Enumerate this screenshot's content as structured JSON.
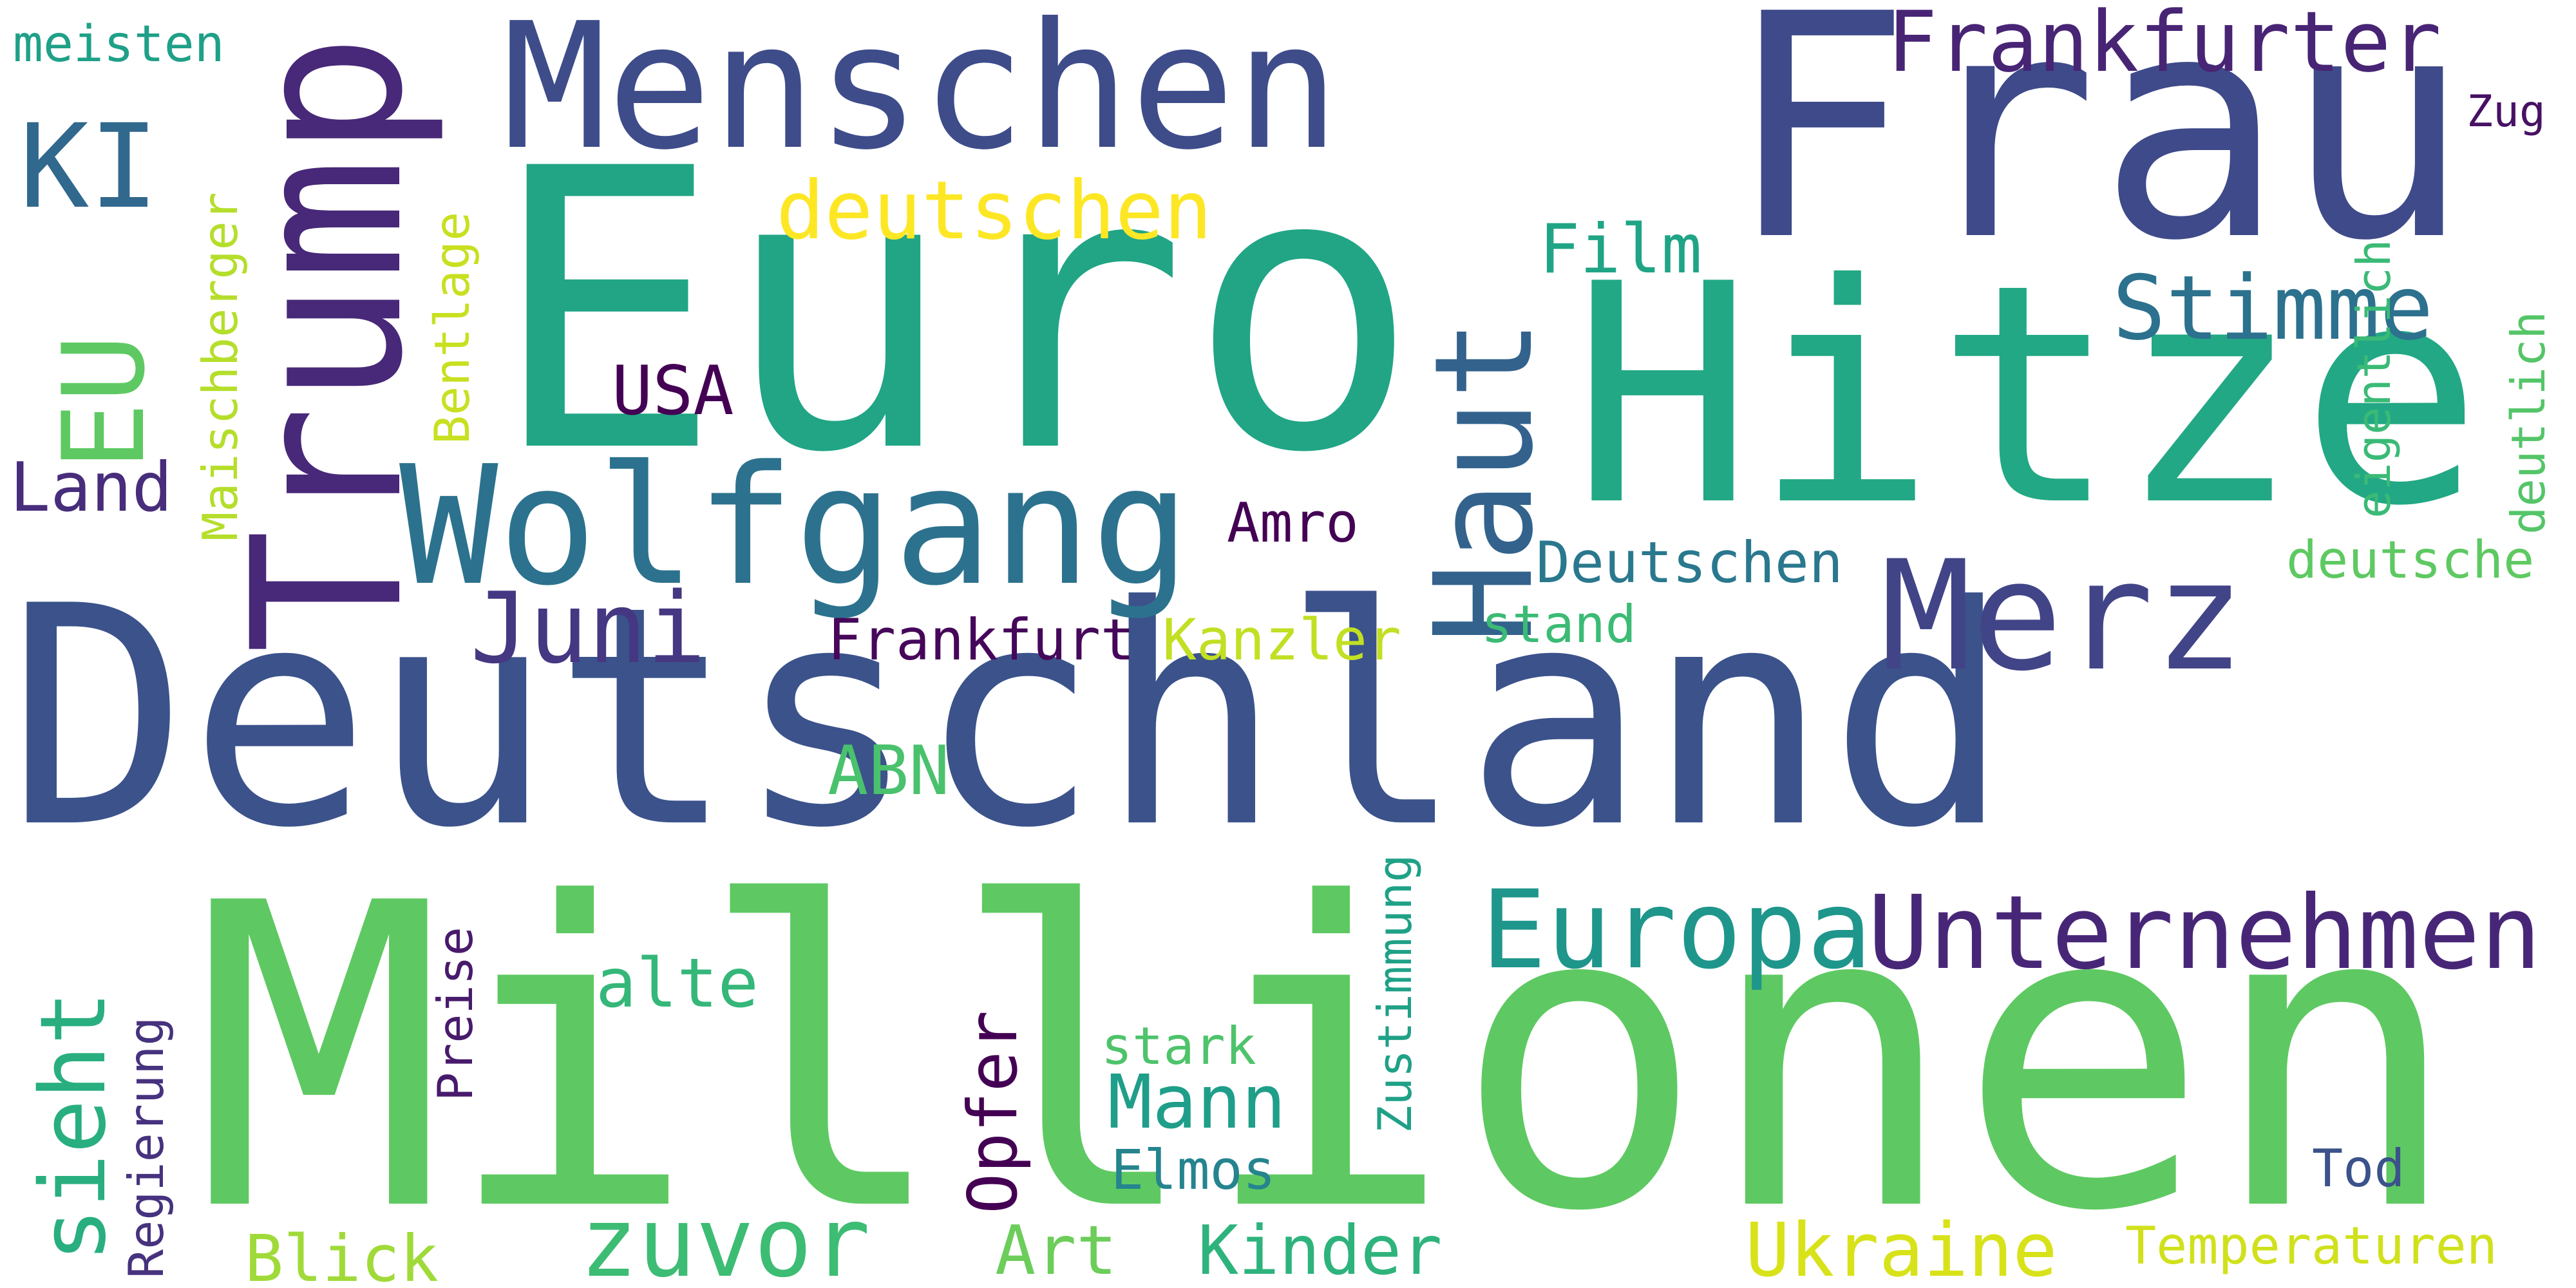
{
  "words": [
    {
      "text": "Deutschland",
      "color": "#3b528b",
      "orientation": "horizontal"
    },
    {
      "text": "Millionen",
      "color": "#5ec962",
      "orientation": "horizontal"
    },
    {
      "text": "Euro",
      "color": "#21a585",
      "orientation": "horizontal"
    },
    {
      "text": "Hitze",
      "color": "#22a884",
      "orientation": "horizontal"
    },
    {
      "text": "Frau",
      "color": "#3e4a89",
      "orientation": "horizontal"
    },
    {
      "text": "Trump",
      "color": "#482878",
      "orientation": "vertical"
    },
    {
      "text": "Menschen",
      "color": "#3e4c8a",
      "orientation": "horizontal"
    },
    {
      "text": "Wolfgang",
      "color": "#2c728e",
      "orientation": "horizontal"
    },
    {
      "text": "Merz",
      "color": "#414487",
      "orientation": "horizontal"
    },
    {
      "text": "Haut",
      "color": "#33638d",
      "orientation": "vertical"
    },
    {
      "text": "Unternehmen",
      "color": "#482677",
      "orientation": "horizontal"
    },
    {
      "text": "Europa",
      "color": "#1f968b",
      "orientation": "horizontal"
    },
    {
      "text": "EU",
      "color": "#5ec962",
      "orientation": "vertical"
    },
    {
      "text": "KI",
      "color": "#31688e",
      "orientation": "horizontal"
    },
    {
      "text": "Frankfurter",
      "color": "#482475",
      "orientation": "horizontal"
    },
    {
      "text": "Stimme",
      "color": "#2c718e",
      "orientation": "horizontal"
    },
    {
      "text": "Juni",
      "color": "#453781",
      "orientation": "horizontal"
    },
    {
      "text": "zuvor",
      "color": "#3dbc74",
      "orientation": "horizontal"
    },
    {
      "text": "sieht",
      "color": "#29af7f",
      "orientation": "vertical"
    },
    {
      "text": "deutschen",
      "color": "#fde725",
      "orientation": "horizontal"
    },
    {
      "text": "Ukraine",
      "color": "#d8e219",
      "orientation": "horizontal"
    },
    {
      "text": "Mann",
      "color": "#1f9e89",
      "orientation": "horizontal"
    },
    {
      "text": "ABN",
      "color": "#4ac16d",
      "orientation": "horizontal"
    },
    {
      "text": "Kinder",
      "color": "#2eb37c",
      "orientation": "horizontal"
    },
    {
      "text": "Art",
      "color": "#6ccd5a",
      "orientation": "horizontal"
    },
    {
      "text": "alte",
      "color": "#35b779",
      "orientation": "horizontal"
    },
    {
      "text": "USA",
      "color": "#440154",
      "orientation": "horizontal"
    },
    {
      "text": "Land",
      "color": "#472d7b",
      "orientation": "horizontal"
    },
    {
      "text": "Film",
      "color": "#20a486",
      "orientation": "horizontal"
    },
    {
      "text": "Blick",
      "color": "#a0da39",
      "orientation": "horizontal"
    },
    {
      "text": "Opfer",
      "color": "#440154",
      "orientation": "vertical"
    },
    {
      "text": "Frankfurt",
      "color": "#46075a",
      "orientation": "horizontal"
    },
    {
      "text": "Kanzler",
      "color": "#c2df23",
      "orientation": "horizontal"
    },
    {
      "text": "Deutschen",
      "color": "#2a788e",
      "orientation": "horizontal"
    },
    {
      "text": "Elmos",
      "color": "#25848e",
      "orientation": "horizontal"
    },
    {
      "text": "Temperaturen",
      "color": "#d0e11c",
      "orientation": "horizontal"
    },
    {
      "text": "Amro",
      "color": "#440154",
      "orientation": "horizontal"
    },
    {
      "text": "stand",
      "color": "#3bbb75",
      "orientation": "horizontal"
    },
    {
      "text": "deutsche",
      "color": "#5ec962",
      "orientation": "horizontal"
    },
    {
      "text": "stark",
      "color": "#4ec36b",
      "orientation": "horizontal"
    },
    {
      "text": "Tod",
      "color": "#3b528b",
      "orientation": "horizontal"
    },
    {
      "text": "meisten",
      "color": "#1fa088",
      "orientation": "horizontal"
    },
    {
      "text": "Zug",
      "color": "#471164",
      "orientation": "horizontal"
    },
    {
      "text": "Maischberger",
      "color": "#b5de2b",
      "orientation": "vertical"
    },
    {
      "text": "Bentlage",
      "color": "#c8e020",
      "orientation": "vertical"
    },
    {
      "text": "eigentlich",
      "color": "#3aba76",
      "orientation": "vertical"
    },
    {
      "text": "deutlich",
      "color": "#54c568",
      "orientation": "vertical"
    },
    {
      "text": "Zustimmung",
      "color": "#1fa187",
      "orientation": "vertical"
    },
    {
      "text": "Regierung",
      "color": "#46327e",
      "orientation": "vertical"
    },
    {
      "text": "Preise",
      "color": "#481a6c",
      "orientation": "vertical"
    }
  ]
}
